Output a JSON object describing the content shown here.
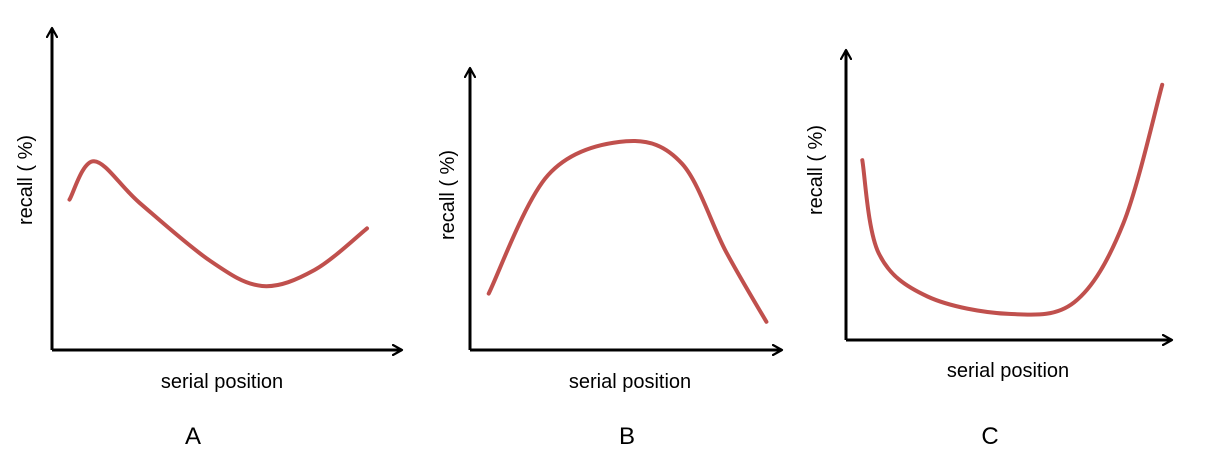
{
  "chart_data": [
    {
      "type": "line",
      "panel_label": "A",
      "xlabel": "serial position",
      "ylabel": "recall ( %)",
      "ticks": "none",
      "grid": false,
      "xlim": [
        0,
        100
      ],
      "ylim": [
        0,
        100
      ],
      "line_color": "#c0504d",
      "series": [
        {
          "x": [
            5,
            12,
            25,
            45,
            60,
            75,
            90
          ],
          "y": [
            47,
            59,
            46,
            28,
            20,
            25,
            38
          ]
        }
      ]
    },
    {
      "type": "line",
      "panel_label": "B",
      "xlabel": "serial position",
      "ylabel": "recall ( %)",
      "ticks": "none",
      "grid": false,
      "xlim": [
        0,
        100
      ],
      "ylim": [
        0,
        100
      ],
      "line_color": "#c0504d",
      "series": [
        {
          "x": [
            6,
            25,
            50,
            68,
            82,
            95
          ],
          "y": [
            20,
            62,
            74,
            66,
            35,
            10
          ]
        }
      ]
    },
    {
      "type": "line",
      "panel_label": "C",
      "xlabel": "serial position",
      "ylabel": "recall ( %)",
      "ticks": "none",
      "grid": false,
      "xlim": [
        0,
        100
      ],
      "ylim": [
        0,
        100
      ],
      "line_color": "#c0504d",
      "series": [
        {
          "x": [
            5,
            10,
            25,
            50,
            70,
            85,
            97
          ],
          "y": [
            62,
            30,
            15,
            9,
            13,
            40,
            88
          ]
        }
      ]
    }
  ]
}
